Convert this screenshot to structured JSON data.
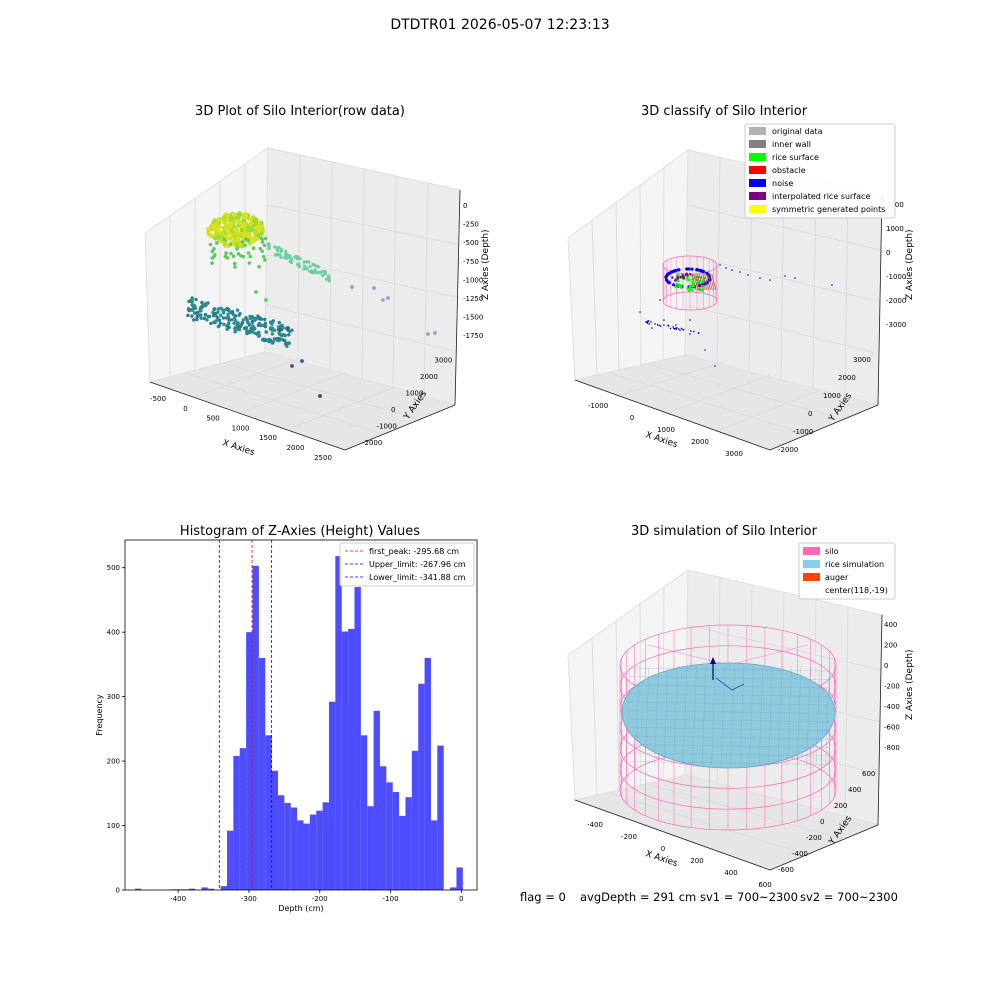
{
  "suptitle": "DTDTR01 2026-05-07 12:23:13",
  "panels": {
    "raw": {
      "title": "3D Plot of Silo Interior(row data)",
      "xlabel": "X Axies",
      "ylabel": "Y Axies",
      "zlabel": "Z Axies (Depth)",
      "xticks": [
        "-500",
        "0",
        "500",
        "1000",
        "1500",
        "2000",
        "2500"
      ],
      "yticks": [
        "-2000",
        "-1000",
        "0",
        "1000",
        "2000",
        "3000"
      ],
      "zticks": [
        "0",
        "-250",
        "-500",
        "-750",
        "-1000",
        "-1250",
        "-1500",
        "-1750"
      ]
    },
    "classify": {
      "title": "3D classify of Silo Interior",
      "xlabel": "X Axies",
      "ylabel": "Y Axies",
      "zlabel": "Z Axies (Depth)",
      "xticks": [
        "-1000",
        "0",
        "1000",
        "2000",
        "3000"
      ],
      "yticks": [
        "-2000",
        "-1000",
        "0",
        "1000",
        "2000",
        "3000"
      ],
      "zticks": [
        "2000",
        "1000",
        "0",
        "-1000",
        "-2000",
        "-3000"
      ],
      "legend": [
        {
          "label": "original data",
          "color": "#b3b3b3"
        },
        {
          "label": "inner wall",
          "color": "#808080"
        },
        {
          "label": "rice surface",
          "color": "#00ff00"
        },
        {
          "label": "obstacle",
          "color": "#ff0000"
        },
        {
          "label": "noise",
          "color": "#0000ff"
        },
        {
          "label": "interpolated rice surface",
          "color": "#800080"
        },
        {
          "label": "symmetric generated points",
          "color": "#ffff00"
        }
      ]
    },
    "simulation": {
      "title": "3D simulation of Silo Interior",
      "xlabel": "X Axies",
      "ylabel": "Y Axies",
      "zlabel": "Z Axies (Depth)",
      "xticks": [
        "-400",
        "-200",
        "0",
        "200",
        "400",
        "600"
      ],
      "yticks": [
        "-600",
        "-400",
        "-200",
        "0",
        "200",
        "400",
        "600"
      ],
      "zticks": [
        "400",
        "200",
        "0",
        "-200",
        "-400",
        "-600",
        "-800"
      ],
      "legend": [
        {
          "label": "silo",
          "color": "#ff69b4"
        },
        {
          "label": "rice simulation",
          "color": "#87ceeb"
        },
        {
          "label": "auger",
          "color": "#ff4500"
        },
        {
          "label": "center(118,-19)",
          "color": ""
        }
      ]
    }
  },
  "footer": {
    "flag": "flag = 0",
    "avg": "avgDepth = 291 cm",
    "sv1": "sv1 = 700~2300",
    "sv2": "sv2 = 700~2300"
  },
  "chart_data": {
    "type": "bar",
    "title": "Histogram of Z-Axies (Height) Values",
    "xlabel": "Depth (cm)",
    "ylabel": "Frequency",
    "xlim": [
      -475,
      22
    ],
    "ylim": [
      0,
      543
    ],
    "xticks": [
      -400,
      -300,
      -200,
      -100,
      0
    ],
    "yticks": [
      0,
      100,
      200,
      300,
      400,
      500
    ],
    "bar_color": "#4d4dff",
    "bins": [
      {
        "x0": -461,
        "x1": -452,
        "count": 2
      },
      {
        "x0": -412,
        "x1": -403,
        "count": 1
      },
      {
        "x0": -403,
        "x1": -394,
        "count": 1
      },
      {
        "x0": -394,
        "x1": -385,
        "count": 1
      },
      {
        "x0": -385,
        "x1": -376,
        "count": 2
      },
      {
        "x0": -367,
        "x1": -358,
        "count": 4
      },
      {
        "x0": -358,
        "x1": -349,
        "count": 2
      },
      {
        "x0": -340,
        "x1": -331,
        "count": 6
      },
      {
        "x0": -331,
        "x1": -322,
        "count": 92
      },
      {
        "x0": -322,
        "x1": -313,
        "count": 208
      },
      {
        "x0": -313,
        "x1": -304,
        "count": 220
      },
      {
        "x0": -304,
        "x1": -295,
        "count": 400
      },
      {
        "x0": -295,
        "x1": -286,
        "count": 503
      },
      {
        "x0": -286,
        "x1": -277,
        "count": 360
      },
      {
        "x0": -277,
        "x1": -268,
        "count": 240
      },
      {
        "x0": -268,
        "x1": -259,
        "count": 185
      },
      {
        "x0": -259,
        "x1": -250,
        "count": 147
      },
      {
        "x0": -250,
        "x1": -241,
        "count": 135
      },
      {
        "x0": -241,
        "x1": -232,
        "count": 128
      },
      {
        "x0": -232,
        "x1": -223,
        "count": 108
      },
      {
        "x0": -223,
        "x1": -214,
        "count": 103
      },
      {
        "x0": -214,
        "x1": -205,
        "count": 117
      },
      {
        "x0": -205,
        "x1": -196,
        "count": 123
      },
      {
        "x0": -196,
        "x1": -187,
        "count": 136
      },
      {
        "x0": -187,
        "x1": -178,
        "count": 292
      },
      {
        "x0": -178,
        "x1": -169,
        "count": 518
      },
      {
        "x0": -169,
        "x1": -160,
        "count": 401
      },
      {
        "x0": -160,
        "x1": -151,
        "count": 405
      },
      {
        "x0": -151,
        "x1": -142,
        "count": 470
      },
      {
        "x0": -142,
        "x1": -133,
        "count": 240
      },
      {
        "x0": -133,
        "x1": -124,
        "count": 130
      },
      {
        "x0": -124,
        "x1": -115,
        "count": 278
      },
      {
        "x0": -115,
        "x1": -106,
        "count": 192
      },
      {
        "x0": -106,
        "x1": -97,
        "count": 167
      },
      {
        "x0": -97,
        "x1": -88,
        "count": 152
      },
      {
        "x0": -88,
        "x1": -79,
        "count": 115
      },
      {
        "x0": -79,
        "x1": -70,
        "count": 144
      },
      {
        "x0": -70,
        "x1": -61,
        "count": 216
      },
      {
        "x0": -61,
        "x1": -52,
        "count": 320
      },
      {
        "x0": -52,
        "x1": -43,
        "count": 360
      },
      {
        "x0": -43,
        "x1": -34,
        "count": 108
      },
      {
        "x0": -34,
        "x1": -25,
        "count": 224
      },
      {
        "x0": -16,
        "x1": -7,
        "count": 4
      },
      {
        "x0": -7,
        "x1": 2,
        "count": 35
      }
    ],
    "vlines": [
      {
        "name": "first_peak: -295.68 cm",
        "x": -295.68,
        "color": "#ff0000"
      },
      {
        "name": "Upper_limit: -267.96 cm",
        "x": -267.96,
        "color": "#0000ff"
      },
      {
        "name": "Lower_limit: -341.88 cm",
        "x": -341.88,
        "color": "#0000ff"
      }
    ],
    "legend_position": "upper right"
  }
}
